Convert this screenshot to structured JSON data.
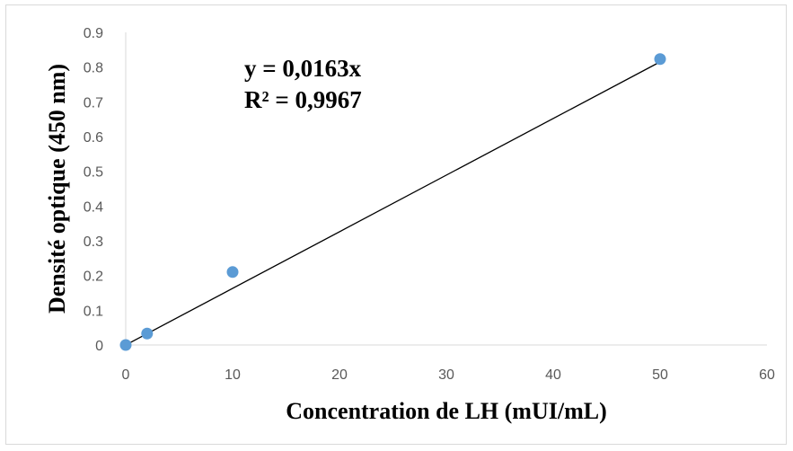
{
  "chart_data": {
    "type": "scatter",
    "xlabel": "Concentration de LH (mUI/mL)",
    "ylabel": "Densité optique (450 nm)",
    "xlim": [
      0,
      60
    ],
    "ylim": [
      0,
      0.9
    ],
    "x_ticks": [
      "0",
      "10",
      "20",
      "30",
      "40",
      "50",
      "60"
    ],
    "y_ticks": [
      "0",
      "0.1",
      "0.2",
      "0.3",
      "0.4",
      "0.5",
      "0.6",
      "0.7",
      "0.8",
      "0.9"
    ],
    "grid": false,
    "series": [
      {
        "x": [
          0,
          2,
          10,
          50
        ],
        "y": [
          0.0,
          0.033,
          0.21,
          0.823
        ]
      }
    ],
    "trendline": {
      "type": "linear",
      "slope": 0.0163,
      "intercept": 0
    },
    "annotations": {
      "equation": "y = 0,0163x",
      "r_squared": "R² = 0,9967"
    },
    "colors": {
      "points": "#5b9bd5",
      "trendline": "#000000",
      "axis": "#d9d9d9",
      "tick_text": "#595959"
    }
  }
}
